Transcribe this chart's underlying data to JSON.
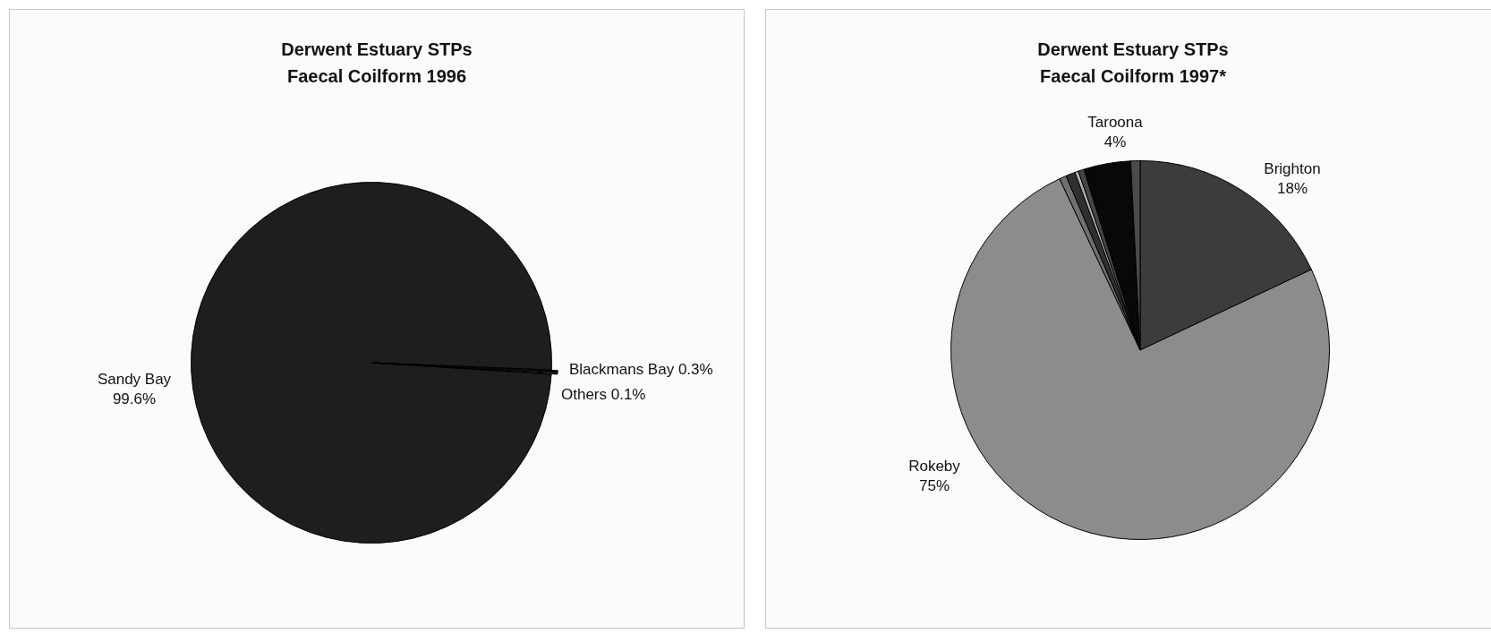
{
  "chart_data": [
    {
      "type": "pie",
      "title": "Derwent Estuary STPs\nFaecal Coilform 1996",
      "categories": [
        "Sandy Bay",
        "Blackmans Bay",
        "Others"
      ],
      "values": [
        99.6,
        0.3,
        0.1
      ],
      "colors": [
        "#1e1e1e",
        "#0a0a0a",
        "#0a0a0a"
      ],
      "value_labels": [
        "99.6%",
        "0.3%",
        "0.1%"
      ]
    },
    {
      "type": "pie",
      "title": "Derwent Estuary STPs\nFaecal Coilform 1997*",
      "categories": [
        "Brighton",
        "Rokeby",
        null,
        null,
        null,
        null,
        "Taroona",
        null
      ],
      "values": [
        18,
        75,
        0.6,
        0.8,
        0.3,
        0.5,
        4,
        0.8
      ],
      "colors": [
        "#3c3c3c",
        "#8c8c8c",
        "#707070",
        "#303030",
        "#b0b0b0",
        "#454545",
        "#080808",
        "#4a4a4a"
      ],
      "value_labels": [
        "18%",
        "75%",
        null,
        null,
        null,
        null,
        "4%",
        null
      ]
    }
  ]
}
